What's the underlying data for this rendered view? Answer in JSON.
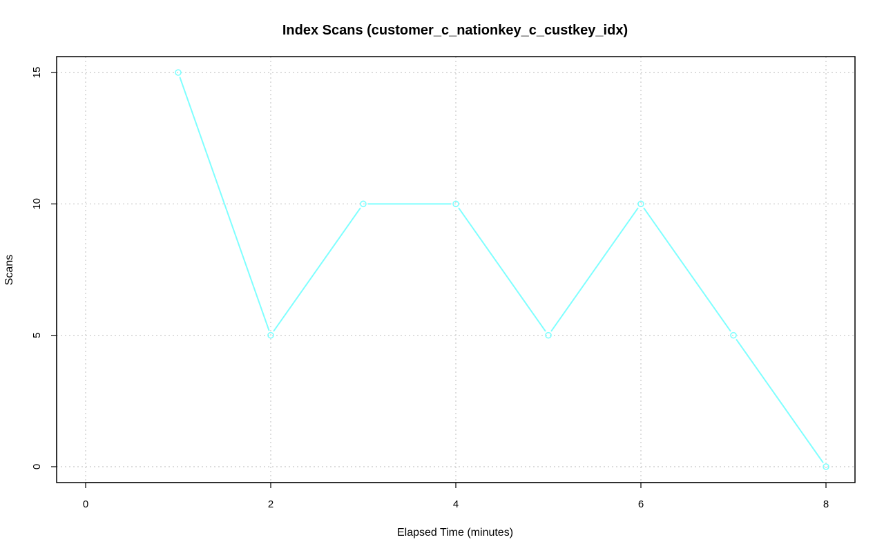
{
  "chart_data": {
    "type": "line",
    "title": "Index Scans (customer_c_nationkey_c_custkey_idx)",
    "xlabel": "Elapsed Time (minutes)",
    "ylabel": "Scans",
    "xlim": [
      0,
      8
    ],
    "ylim": [
      0,
      15
    ],
    "x_ticks": [
      0,
      2,
      4,
      6,
      8
    ],
    "y_ticks": [
      0,
      5,
      10,
      15
    ],
    "x_tick_labels": [
      "0",
      "2",
      "4",
      "6",
      "8"
    ],
    "y_tick_labels": [
      "0",
      "5",
      "10",
      "15"
    ],
    "grid": true,
    "series": [
      {
        "color": "#7fffff",
        "x": [
          1,
          2,
          3,
          4,
          5,
          6,
          7,
          8
        ],
        "y": [
          15,
          5,
          10,
          10,
          5,
          10,
          5,
          0
        ]
      }
    ]
  }
}
